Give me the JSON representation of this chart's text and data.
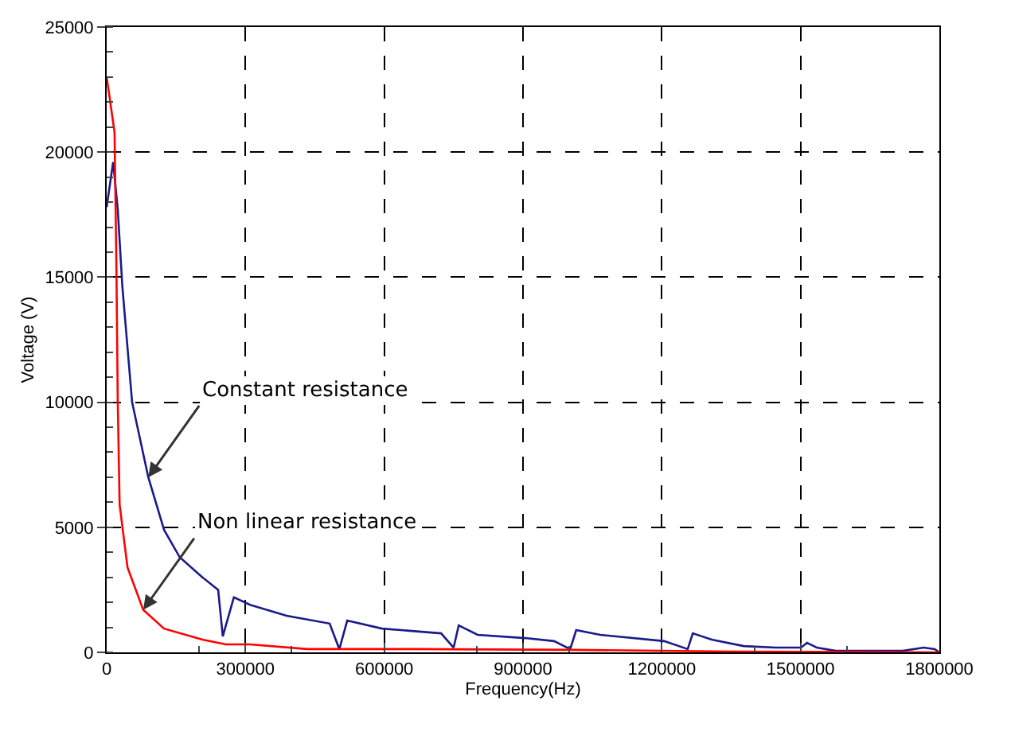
{
  "chart_data": {
    "type": "line",
    "xlabel": "Frequency(Hz)",
    "ylabel": "Voltage (V)",
    "xlim": [
      0,
      1800000
    ],
    "xticks": [
      0,
      300000,
      600000,
      900000,
      1200000,
      1500000,
      1800000
    ],
    "ylim": [
      0,
      25000
    ],
    "yticks": [
      0,
      5000,
      10000,
      15000,
      20000,
      25000
    ],
    "grid": true,
    "marker": "none",
    "line_style": "solid",
    "series": [
      {
        "color": "#1a1a8c",
        "x": [
          0,
          14000,
          24000,
          34000,
          55000,
          90000,
          124000,
          158000,
          207000,
          241000,
          251000,
          275000,
          310000,
          389000,
          482000,
          503000,
          520000,
          595000,
          723000,
          750000,
          761000,
          802000,
          905000,
          967000,
          1002000,
          1015000,
          1067000,
          1205000,
          1256000,
          1267000,
          1308000,
          1377000,
          1446000,
          1501000,
          1514000,
          1535000,
          1576000,
          1721000,
          1766000,
          1790000,
          1800000
        ],
        "values": [
          17800,
          19600,
          17700,
          14600,
          10000,
          7000,
          4900,
          3800,
          3000,
          2500,
          640,
          2200,
          1900,
          1460,
          1150,
          130,
          1270,
          950,
          760,
          190,
          1080,
          700,
          570,
          450,
          130,
          890,
          700,
          450,
          130,
          760,
          510,
          250,
          190,
          190,
          380,
          190,
          60,
          60,
          190,
          130,
          0
        ]
      },
      {
        "color": "#ff0000",
        "x": [
          0,
          17000,
          21000,
          24000,
          28000,
          45000,
          79000,
          124000,
          207000,
          258000,
          310000,
          434000,
          664000,
          1008000,
          1353000,
          1800000
        ],
        "values": [
          23000,
          20800,
          15500,
          10000,
          5900,
          3400,
          1700,
          950,
          510,
          320,
          320,
          130,
          130,
          100,
          30,
          0
        ]
      }
    ],
    "annotations": [
      {
        "text": "Constant resistance",
        "x": 90000,
        "y": 7000
      },
      {
        "text": "Non linear resistance",
        "x": 79000,
        "y": 1700
      }
    ]
  }
}
